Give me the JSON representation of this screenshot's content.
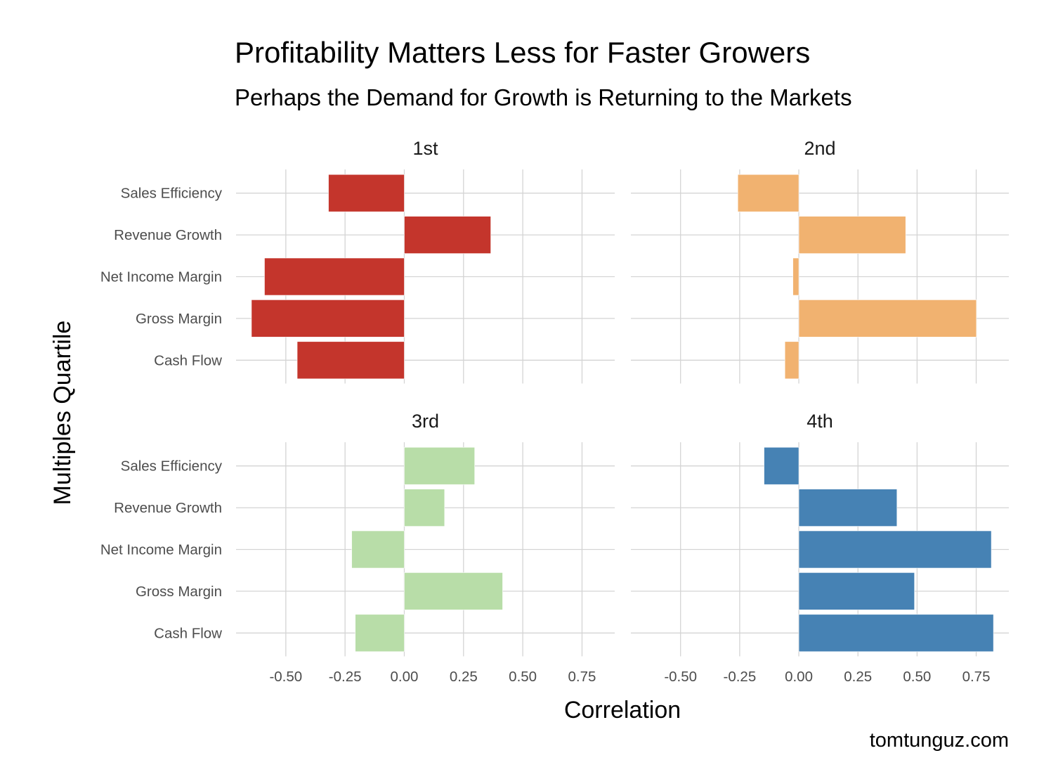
{
  "chart_data": {
    "type": "bar",
    "orientation": "horizontal",
    "facet": "wrap",
    "title": "Profitability Matters Less for Faster Growers",
    "subtitle": "Perhaps the Demand for Growth is Returning to the Markets",
    "xlabel": "Correlation",
    "ylabel": "Multiples Quartile",
    "caption": "tomtunguz.com",
    "categories": [
      "Sales Efficiency",
      "Revenue Growth",
      "Net Income Margin",
      "Gross Margin",
      "Cash Flow"
    ],
    "xlim": [
      -0.71,
      0.888
    ],
    "xticks": [
      -0.5,
      -0.25,
      0,
      0.25,
      0.5,
      0.75
    ],
    "xtick_labels": [
      "-0.50",
      "-0.25",
      "0.00",
      "0.25",
      "0.50",
      "0.75"
    ],
    "grid": true,
    "legend": "none",
    "panels": [
      {
        "label": "1st",
        "color": "#C4352C",
        "values": [
          -0.32,
          0.365,
          -0.59,
          -0.645,
          -0.452
        ]
      },
      {
        "label": "2nd",
        "color": "#F1B270",
        "values": [
          -0.258,
          0.452,
          -0.025,
          0.751,
          -0.059
        ]
      },
      {
        "label": "3rd",
        "color": "#B8DDA8",
        "values": [
          0.297,
          0.17,
          -0.222,
          0.415,
          -0.207
        ]
      },
      {
        "label": "4th",
        "color": "#4682B4",
        "values": [
          -0.147,
          0.415,
          0.814,
          0.489,
          0.823
        ]
      }
    ]
  }
}
